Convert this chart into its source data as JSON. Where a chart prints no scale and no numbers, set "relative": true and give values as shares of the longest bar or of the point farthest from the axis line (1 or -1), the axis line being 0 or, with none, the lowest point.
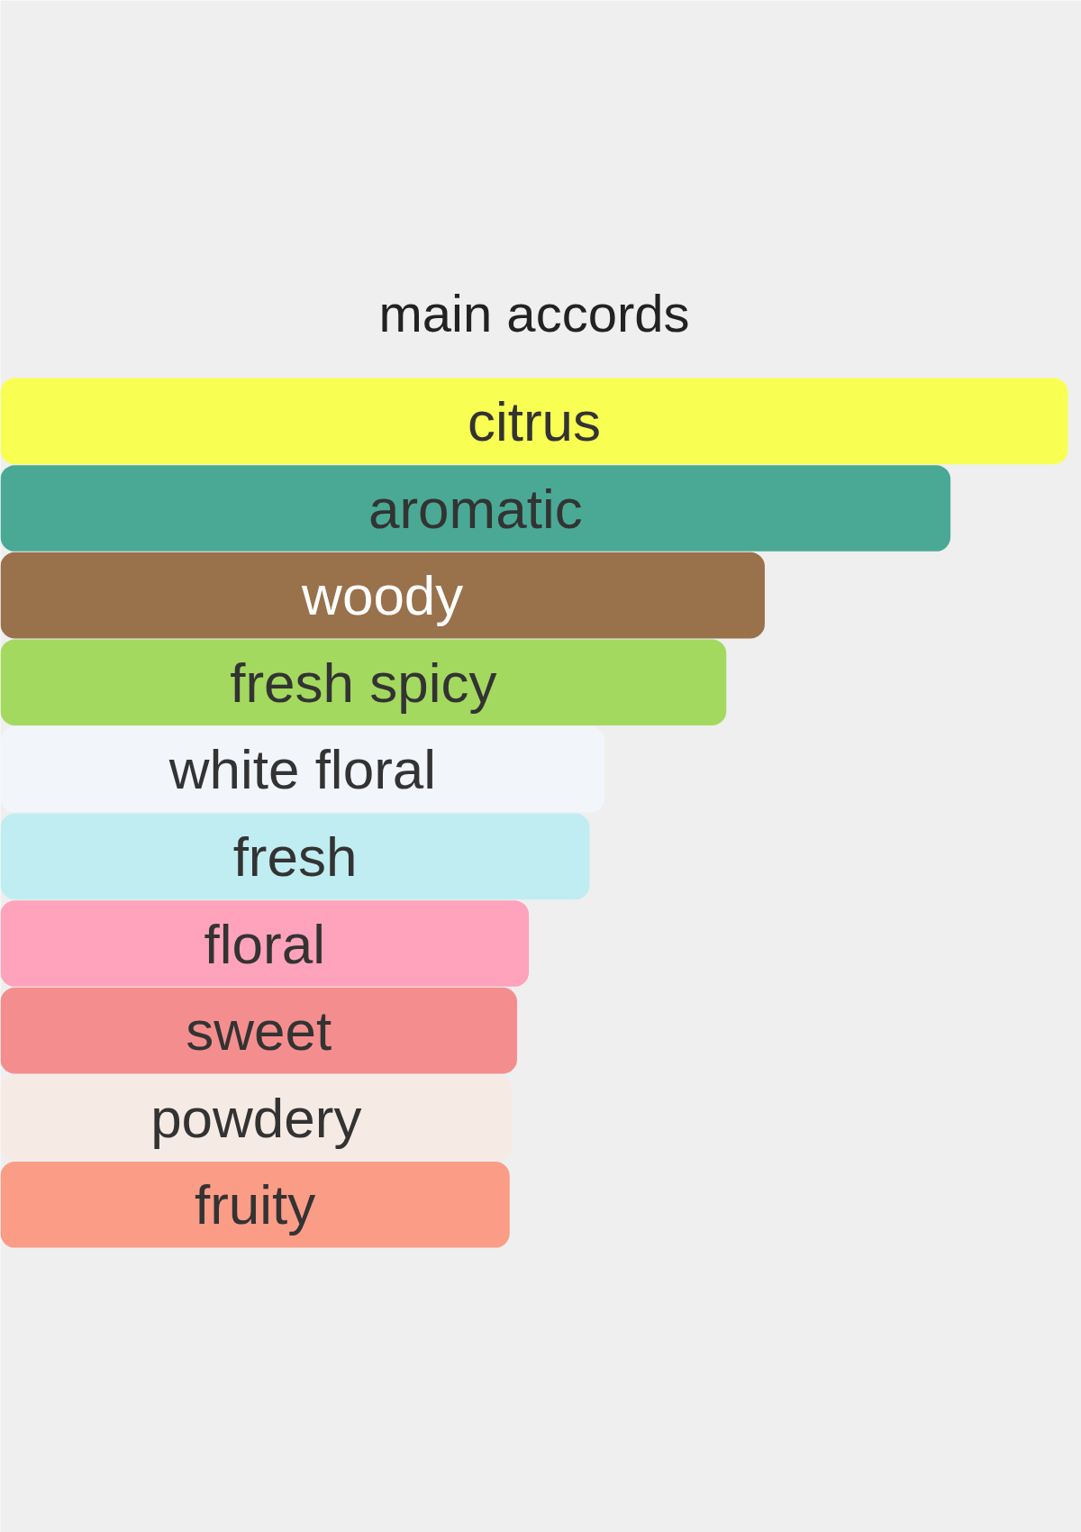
{
  "chart_data": {
    "type": "bar",
    "orientation": "horizontal",
    "relative": true,
    "title": "main accords",
    "categories": [
      "citrus",
      "aromatic",
      "woody",
      "fresh spicy",
      "white floral",
      "fresh",
      "floral",
      "sweet",
      "powdery",
      "fruity"
    ],
    "values": [
      1,
      0.89,
      0.716,
      0.68,
      0.566,
      0.552,
      0.495,
      0.484,
      0.479,
      0.477
    ],
    "colors": [
      "#f9ff52",
      "#4aa994",
      "#99714b",
      "#a3d95f",
      "#f2f5fa",
      "#c0edf2",
      "#fea3bb",
      "#f48e8e",
      "#f6ebe4",
      "#fb9c86"
    ]
  }
}
